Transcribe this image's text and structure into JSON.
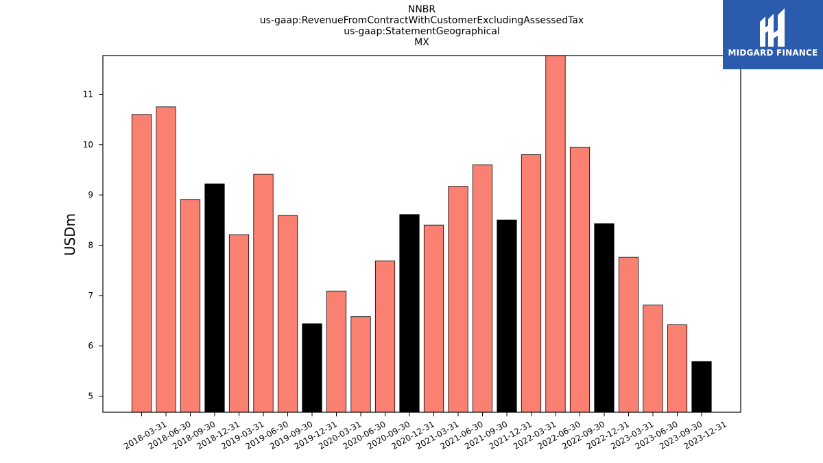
{
  "brand": {
    "name": "MIDGARD FINANCE"
  },
  "chart_data": {
    "type": "bar",
    "title_lines": [
      "NNBR",
      "us-gaap:RevenueFromContractWithCustomerExcludingAssessedTax",
      "us-gaap:StatementGeographical",
      "MX"
    ],
    "xlabel": "",
    "ylabel": "USDm",
    "ylim": [
      4.68,
      11.77
    ],
    "yticks": [
      5,
      6,
      7,
      8,
      9,
      10,
      11
    ],
    "grid": false,
    "colors": {
      "quarter": "#fa8072",
      "year_end": "#000000",
      "edge": "#000000"
    },
    "categories": [
      "2018-03-31",
      "2018-06-30",
      "2018-09-30",
      "2018-12-31",
      "2019-03-31",
      "2019-06-30",
      "2019-09-30",
      "2019-12-31",
      "2020-03-31",
      "2020-06-30",
      "2020-09-30",
      "2020-12-31",
      "2021-03-31",
      "2021-06-30",
      "2021-09-30",
      "2021-12-31",
      "2022-03-31",
      "2022-06-30",
      "2022-09-30",
      "2022-12-31",
      "2023-03-31",
      "2023-06-30",
      "2023-09-30",
      "2023-12-31"
    ],
    "values": [
      10.6,
      10.75,
      8.91,
      9.22,
      8.21,
      9.41,
      8.59,
      6.44,
      7.09,
      6.58,
      7.69,
      8.61,
      8.4,
      9.17,
      9.6,
      8.5,
      9.8,
      11.8,
      9.95,
      8.43,
      7.76,
      6.81,
      6.42,
      5.69
    ],
    "highlight": [
      false,
      false,
      false,
      true,
      false,
      false,
      false,
      true,
      false,
      false,
      false,
      true,
      false,
      false,
      false,
      true,
      false,
      false,
      false,
      true,
      false,
      false,
      false,
      true
    ]
  }
}
